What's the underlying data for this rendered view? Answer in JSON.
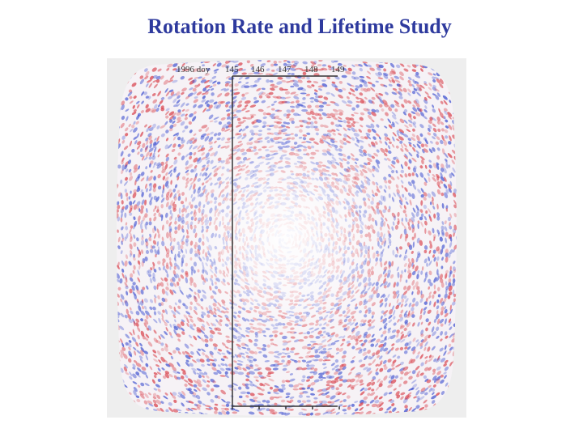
{
  "slide": {
    "title": "Rotation Rate and Lifetime Study"
  },
  "figure": {
    "description_icon": "solar-dopplergram-image",
    "axis": {
      "prefix": "1996 doy",
      "ticks": [
        "145",
        "146",
        "147",
        "148",
        "149"
      ]
    },
    "colors": {
      "title": "#2e3a9e",
      "background": "#eeeeee",
      "red": "#d8404a",
      "blue": "#3d4fcf"
    }
  }
}
